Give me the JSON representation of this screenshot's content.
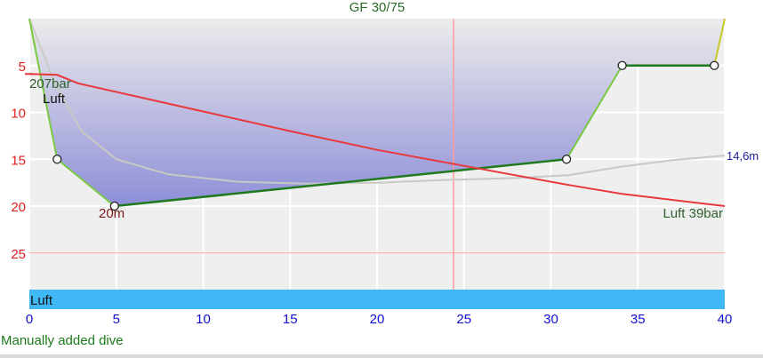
{
  "header": {
    "title": "GF 30/75"
  },
  "chart_data": {
    "type": "line",
    "title": "GF 30/75",
    "x_axis": {
      "range": [
        0,
        40
      ],
      "ticks": [
        "0",
        "5",
        "10",
        "15",
        "20",
        "25",
        "30",
        "35",
        "40"
      ]
    },
    "y_axis": {
      "range": [
        0,
        29
      ],
      "ticks": [
        "5",
        "10",
        "15",
        "20",
        "25"
      ],
      "inverted": true
    },
    "grid": true,
    "depth_profile": {
      "name": "depth",
      "points": [
        [
          0,
          0
        ],
        [
          1.6,
          15
        ],
        [
          4.9,
          20
        ],
        [
          30.9,
          15
        ],
        [
          34.1,
          5
        ],
        [
          39.4,
          5
        ],
        [
          40,
          0
        ]
      ],
      "waypoints": [
        [
          1.6,
          15
        ],
        [
          4.9,
          20
        ],
        [
          30.9,
          15
        ],
        [
          34.1,
          5
        ],
        [
          39.4,
          5
        ]
      ],
      "color_ascent": "#7ac943",
      "color_bottom": "#1f7a1f",
      "fill_top": "#ececec",
      "fill_bottom": "#8e8ed8"
    },
    "ceiling": {
      "name": "ceiling",
      "points": [
        [
          0,
          0
        ],
        [
          1.5,
          7
        ],
        [
          3,
          12
        ],
        [
          5,
          15
        ],
        [
          8,
          16.6
        ],
        [
          12,
          17.4
        ],
        [
          16,
          17.6
        ],
        [
          20,
          17.5
        ],
        [
          24,
          17.2
        ],
        [
          28,
          17
        ],
        [
          31,
          16.7
        ],
        [
          34,
          15.8
        ],
        [
          37,
          15.1
        ],
        [
          40,
          14.6
        ]
      ],
      "color": "#c9c9c4"
    },
    "pressure": {
      "name": "pressure",
      "points": [
        [
          0,
          5.9
        ],
        [
          1.6,
          6
        ],
        [
          2.8,
          6.9
        ],
        [
          10,
          9.9
        ],
        [
          15,
          12
        ],
        [
          20,
          14
        ],
        [
          25,
          15.7
        ],
        [
          30.9,
          17.7
        ],
        [
          34.1,
          18.7
        ],
        [
          40,
          20
        ]
      ],
      "color": "#e8383b"
    },
    "labels": {
      "start_pressure": "207bar",
      "start_gas": "Luft",
      "max_depth": "20m",
      "end_pressure": "Luft 39bar",
      "right_depth": "14,6m"
    },
    "cursor_x": 24.4,
    "reference_depth": 25,
    "gas_band": {
      "label": "Luft",
      "color": "#3fb8f5"
    },
    "colors": {
      "depth_ticks": "#e02020",
      "time_ticks": "#1010d0",
      "grid": "#ffffff",
      "reference_line": "#ff9a9a",
      "cursor": "#ff9a9a"
    }
  },
  "footer": {
    "status": "Manually added dive"
  }
}
